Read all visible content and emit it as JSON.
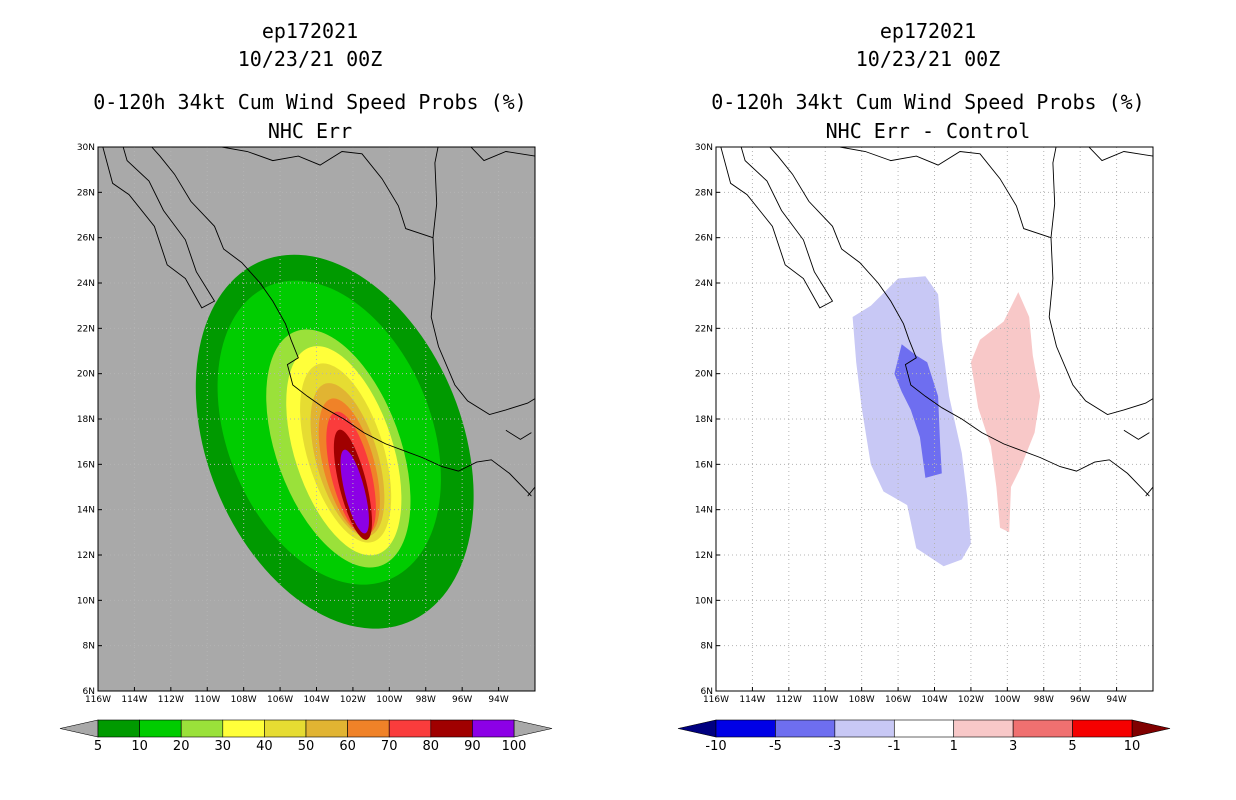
{
  "panels": [
    {
      "storm": "ep172021",
      "date": "10/23/21 00Z",
      "product": "0-120h 34kt Cum Wind Speed Probs (%)",
      "subtitle": "NHC Err"
    },
    {
      "storm": "ep172021",
      "date": "10/23/21 00Z",
      "product": "0-120h 34kt Cum Wind Speed Probs (%)",
      "subtitle": "NHC Err - Control"
    }
  ],
  "chart_data": [
    {
      "type": "heatmap",
      "title": "0-120h 34kt Cum Wind Speed Probs (%)",
      "subtitle": "NHC Err",
      "xlim": [
        -116,
        -92
      ],
      "ylim": [
        6,
        30
      ],
      "xticks": [
        "116W",
        "114W",
        "112W",
        "110W",
        "108W",
        "106W",
        "104W",
        "102W",
        "100W",
        "98W",
        "96W",
        "94W"
      ],
      "yticks": [
        "6N",
        "8N",
        "10N",
        "12N",
        "14N",
        "16N",
        "18N",
        "20N",
        "22N",
        "24N",
        "26N",
        "28N",
        "30N"
      ],
      "background": "#a9a9a9",
      "colorbar": {
        "labels": [
          "5",
          "10",
          "20",
          "30",
          "40",
          "50",
          "60",
          "70",
          "80",
          "90",
          "100"
        ],
        "colors": [
          "#009a00",
          "#00cc00",
          "#9ae13a",
          "#ffff3a",
          "#e6dc32",
          "#e1b432",
          "#f08228",
          "#fa3c3c",
          "#a00000",
          "#8c00e6"
        ],
        "under": "#a9a9a9",
        "over": "#a9a9a9"
      },
      "probability_contours": [
        {
          "threshold": 5,
          "color": "#009a00",
          "center": [
            -103.0,
            17.0
          ],
          "semi_axes_deg": [
            7.0,
            8.6
          ],
          "rotation_deg": -22
        },
        {
          "threshold": 10,
          "color": "#00cc00",
          "center": [
            -103.3,
            17.4
          ],
          "semi_axes_deg": [
            5.6,
            7.0
          ],
          "rotation_deg": -22
        },
        {
          "threshold": 20,
          "color": "#9ae13a",
          "center": [
            -102.8,
            16.7
          ],
          "semi_axes_deg": [
            3.4,
            5.5
          ],
          "rotation_deg": -20
        },
        {
          "threshold": 30,
          "color": "#ffff3a",
          "center": [
            -102.5,
            16.6
          ],
          "semi_axes_deg": [
            2.7,
            4.8
          ],
          "rotation_deg": -18
        },
        {
          "threshold": 40,
          "color": "#e6dc32",
          "center": [
            -102.4,
            16.5
          ],
          "semi_axes_deg": [
            2.1,
            4.1
          ],
          "rotation_deg": -17
        },
        {
          "threshold": 50,
          "color": "#e1b432",
          "center": [
            -102.3,
            16.2
          ],
          "semi_axes_deg": [
            1.7,
            3.5
          ],
          "rotation_deg": -16
        },
        {
          "threshold": 60,
          "color": "#f08228",
          "center": [
            -102.2,
            15.9
          ],
          "semi_axes_deg": [
            1.4,
            3.1
          ],
          "rotation_deg": -15
        },
        {
          "threshold": 70,
          "color": "#fa3c3c",
          "center": [
            -102.1,
            15.6
          ],
          "semi_axes_deg": [
            1.1,
            2.8
          ],
          "rotation_deg": -14
        },
        {
          "threshold": 80,
          "color": "#a00000",
          "center": [
            -102.0,
            15.1
          ],
          "semi_axes_deg": [
            0.75,
            2.5
          ],
          "rotation_deg": -14
        },
        {
          "threshold": 90,
          "color": "#8c00e6",
          "center": [
            -101.9,
            14.8
          ],
          "semi_axes_deg": [
            0.55,
            1.9
          ],
          "rotation_deg": -14
        }
      ]
    },
    {
      "type": "heatmap",
      "title": "0-120h 34kt Cum Wind Speed Probs (%)",
      "subtitle": "NHC Err - Control",
      "xlim": [
        -116,
        -92
      ],
      "ylim": [
        6,
        30
      ],
      "xticks": [
        "116W",
        "114W",
        "112W",
        "110W",
        "108W",
        "106W",
        "104W",
        "102W",
        "100W",
        "98W",
        "96W",
        "94W"
      ],
      "yticks": [
        "6N",
        "8N",
        "10N",
        "12N",
        "14N",
        "16N",
        "18N",
        "20N",
        "22N",
        "24N",
        "26N",
        "28N",
        "30N"
      ],
      "background": "#ffffff",
      "grid": true,
      "colorbar": {
        "labels": [
          "-10",
          "-5",
          "-3",
          "-1",
          "1",
          "3",
          "5",
          "10"
        ],
        "colors": [
          "#0000e6",
          "#6e6ef0",
          "#c8c8f5",
          "#ffffff",
          "#f8c8c8",
          "#f07070",
          "#f50000"
        ],
        "under": "#000080",
        "over": "#800000"
      },
      "difference_regions": [
        {
          "value": -3,
          "color": "#c8c8f5",
          "outline": [
            [
              -107.5,
              23.0
            ],
            [
              -106.0,
              24.2
            ],
            [
              -104.5,
              24.3
            ],
            [
              -103.8,
              23.5
            ],
            [
              -103.6,
              21.5
            ],
            [
              -103.2,
              19.0
            ],
            [
              -102.5,
              16.5
            ],
            [
              -102.2,
              14.5
            ],
            [
              -102.0,
              12.5
            ],
            [
              -102.5,
              11.8
            ],
            [
              -103.5,
              11.5
            ],
            [
              -105.0,
              12.3
            ],
            [
              -105.5,
              14.2
            ],
            [
              -106.8,
              14.8
            ],
            [
              -107.5,
              16.0
            ],
            [
              -108.0,
              18.5
            ],
            [
              -108.3,
              20.5
            ],
            [
              -108.5,
              22.5
            ]
          ]
        },
        {
          "value": -5,
          "color": "#6e6ef0",
          "outline": [
            [
              -105.8,
              21.3
            ],
            [
              -105.0,
              20.8
            ],
            [
              -104.4,
              20.5
            ],
            [
              -103.8,
              19.0
            ],
            [
              -103.7,
              17.0
            ],
            [
              -103.6,
              15.6
            ],
            [
              -104.5,
              15.4
            ],
            [
              -104.8,
              17.2
            ],
            [
              -105.3,
              18.4
            ],
            [
              -105.8,
              19.2
            ],
            [
              -106.2,
              20.0
            ]
          ]
        },
        {
          "value": 3,
          "color": "#f8c8c8",
          "outline": [
            [
              -101.5,
              21.5
            ],
            [
              -100.2,
              22.3
            ],
            [
              -99.4,
              23.6
            ],
            [
              -98.8,
              22.5
            ],
            [
              -98.6,
              20.8
            ],
            [
              -98.2,
              19.0
            ],
            [
              -98.5,
              17.4
            ],
            [
              -99.3,
              15.8
            ],
            [
              -99.8,
              15.0
            ],
            [
              -99.9,
              13.0
            ],
            [
              -100.4,
              13.2
            ],
            [
              -100.6,
              15.0
            ],
            [
              -100.9,
              16.8
            ],
            [
              -101.6,
              18.5
            ],
            [
              -102.0,
              20.5
            ]
          ]
        }
      ]
    }
  ]
}
